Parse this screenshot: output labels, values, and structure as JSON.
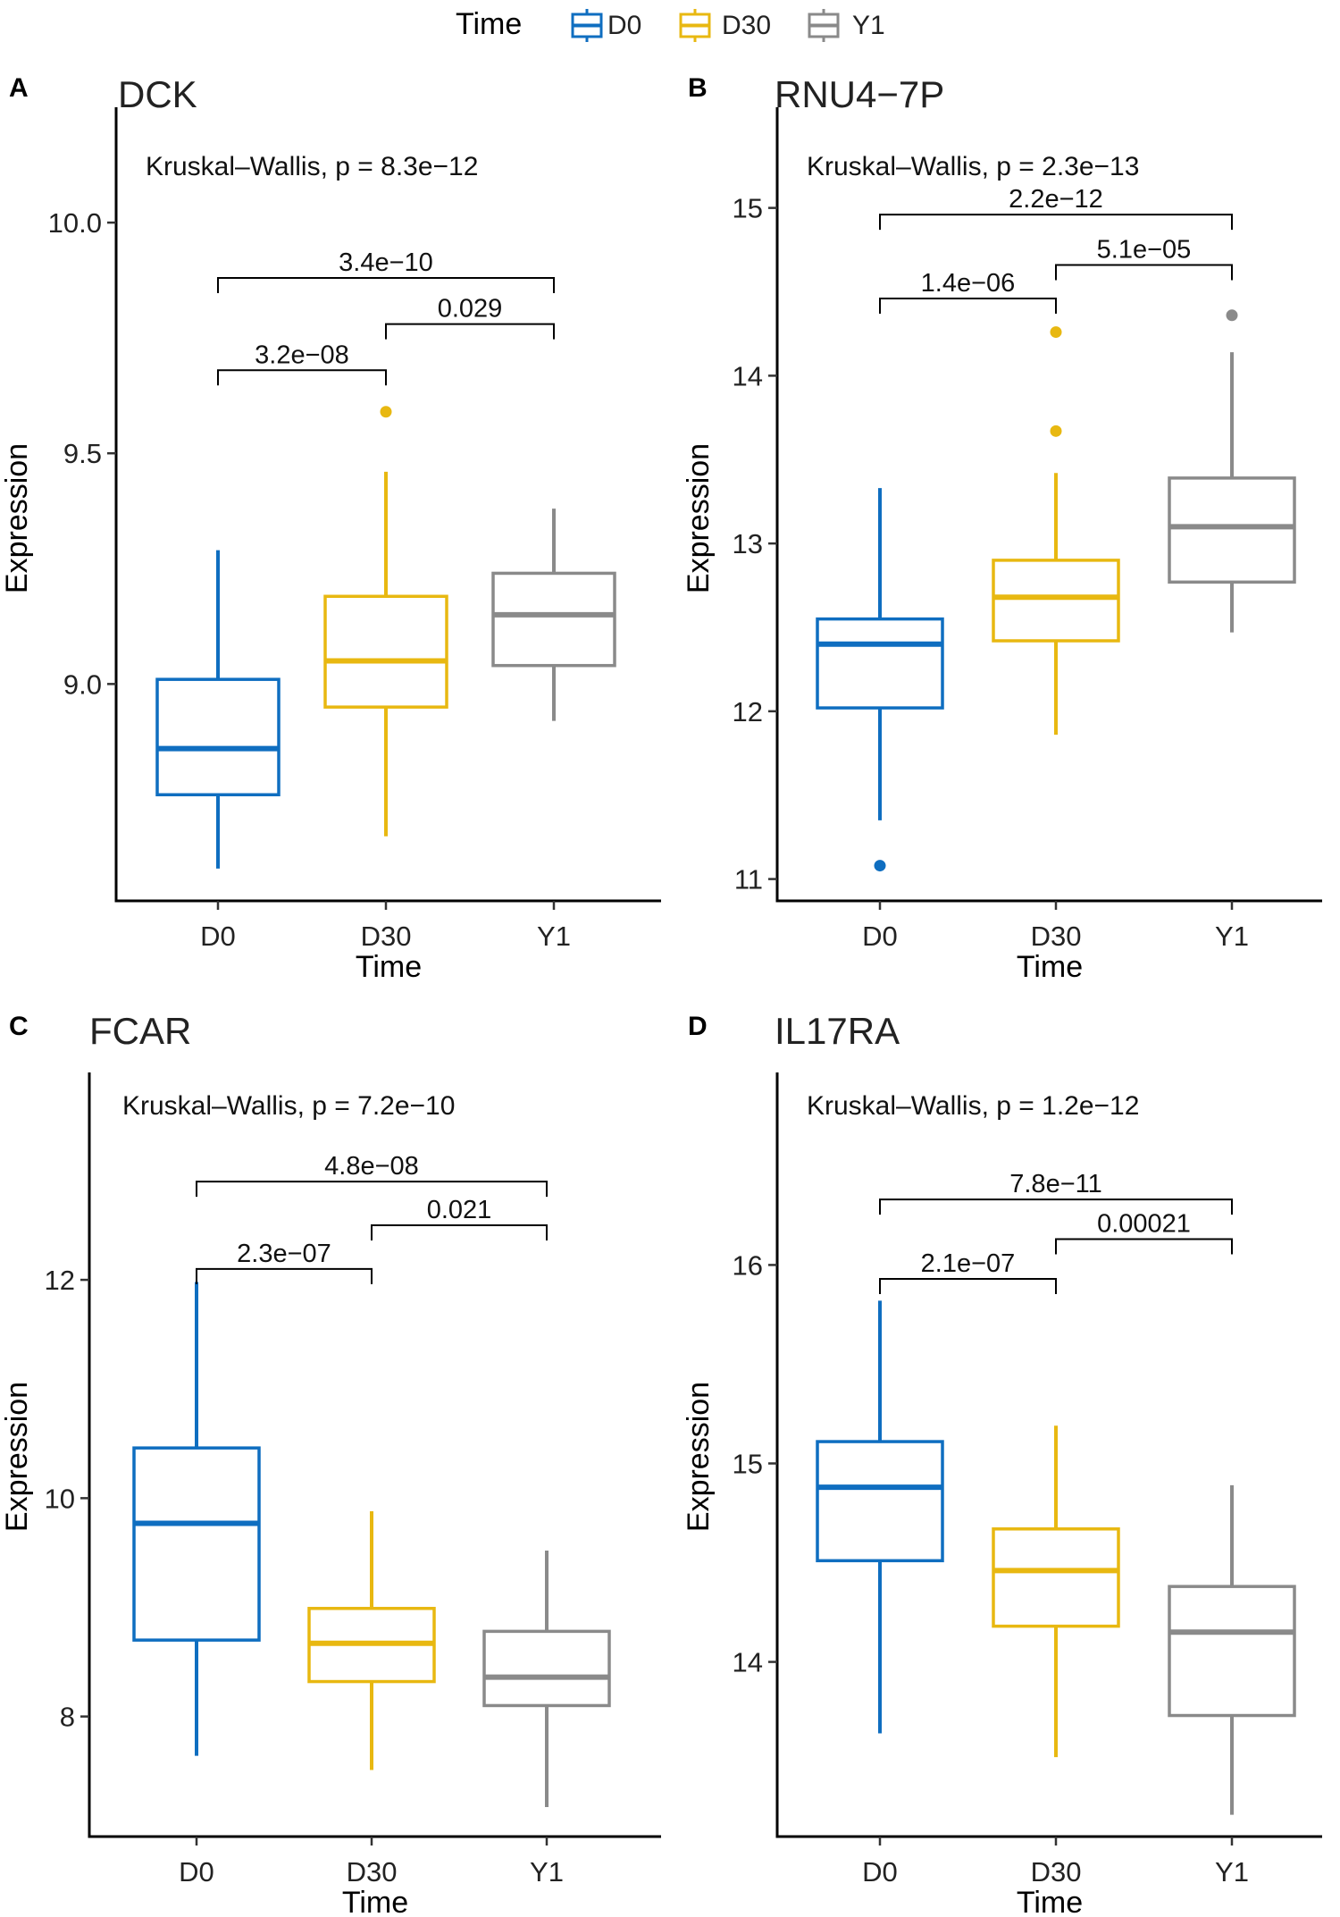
{
  "legend": {
    "title": "Time",
    "items": [
      {
        "label": "D0",
        "color": "#0F6EC0"
      },
      {
        "label": "D30",
        "color": "#E8B811"
      },
      {
        "label": "Y1",
        "color": "#8A8A8A"
      }
    ]
  },
  "chart_data": [
    {
      "type": "box",
      "letter": "A",
      "title": "DCK",
      "test_label": "Kruskal–Wallis, p = 8.3e−12",
      "xlabel": "Time",
      "ylabel": "Expression",
      "ylim": [
        8.53,
        10.25
      ],
      "yticks": [
        9.0,
        9.5,
        10.0
      ],
      "ytick_labels": [
        "9.0",
        "9.5",
        "10.0"
      ],
      "categories": [
        "D0",
        "D30",
        "Y1"
      ],
      "boxes": [
        {
          "group": "D0",
          "whisker_low": 8.6,
          "q1": 8.76,
          "median": 8.86,
          "q3": 9.01,
          "whisker_high": 9.29,
          "outliers": []
        },
        {
          "group": "D30",
          "whisker_low": 8.67,
          "q1": 8.95,
          "median": 9.05,
          "q3": 9.19,
          "whisker_high": 9.46,
          "outliers": [
            9.59
          ]
        },
        {
          "group": "Y1",
          "whisker_low": 8.92,
          "q1": 9.04,
          "median": 9.15,
          "q3": 9.24,
          "whisker_high": 9.38,
          "outliers": []
        }
      ],
      "comparisons": [
        {
          "from": "D0",
          "to": "Y1",
          "label": "3.4e−10",
          "y": 9.88
        },
        {
          "from": "D30",
          "to": "Y1",
          "label": "0.029",
          "y": 9.78
        },
        {
          "from": "D0",
          "to": "D30",
          "label": "3.2e−08",
          "y": 9.68
        }
      ]
    },
    {
      "type": "box",
      "letter": "B",
      "title": "RNU4−7P",
      "test_label": "Kruskal–Wallis, p = 2.3e−13",
      "xlabel": "Time",
      "ylabel": "Expression",
      "ylim": [
        10.87,
        15.6
      ],
      "yticks": [
        11,
        12,
        13,
        14,
        15
      ],
      "ytick_labels": [
        "11",
        "12",
        "13",
        "14",
        "15"
      ],
      "categories": [
        "D0",
        "D30",
        "Y1"
      ],
      "boxes": [
        {
          "group": "D0",
          "whisker_low": 11.35,
          "q1": 12.02,
          "median": 12.4,
          "q3": 12.55,
          "whisker_high": 13.33,
          "outliers": [
            11.08
          ]
        },
        {
          "group": "D30",
          "whisker_low": 11.86,
          "q1": 12.42,
          "median": 12.68,
          "q3": 12.9,
          "whisker_high": 13.42,
          "outliers": [
            13.67,
            14.26
          ]
        },
        {
          "group": "Y1",
          "whisker_low": 12.47,
          "q1": 12.77,
          "median": 13.1,
          "q3": 13.39,
          "whisker_high": 14.14,
          "outliers": [
            14.36
          ]
        }
      ],
      "comparisons": [
        {
          "from": "D0",
          "to": "Y1",
          "label": "2.2e−12",
          "y": 14.96
        },
        {
          "from": "D30",
          "to": "Y1",
          "label": "5.1e−05",
          "y": 14.66
        },
        {
          "from": "D0",
          "to": "D30",
          "label": "1.4e−06",
          "y": 14.46
        }
      ]
    },
    {
      "type": "box",
      "letter": "C",
      "title": "FCAR",
      "test_label": "Kruskal–Wallis, p = 7.2e−10",
      "xlabel": "Time",
      "ylabel": "Expression",
      "ylim": [
        6.9,
        13.9
      ],
      "yticks": [
        8,
        10,
        12
      ],
      "ytick_labels": [
        "8",
        "10",
        "12"
      ],
      "categories": [
        "D0",
        "D30",
        "Y1"
      ],
      "boxes": [
        {
          "group": "D0",
          "whisker_low": 7.64,
          "q1": 8.7,
          "median": 9.77,
          "q3": 10.46,
          "whisker_high": 11.98,
          "outliers": []
        },
        {
          "group": "D30",
          "whisker_low": 7.51,
          "q1": 8.32,
          "median": 8.67,
          "q3": 8.99,
          "whisker_high": 9.88,
          "outliers": []
        },
        {
          "group": "Y1",
          "whisker_low": 7.17,
          "q1": 8.1,
          "median": 8.36,
          "q3": 8.78,
          "whisker_high": 9.52,
          "outliers": []
        }
      ],
      "comparisons": [
        {
          "from": "D0",
          "to": "Y1",
          "label": "4.8e−08",
          "y": 12.9
        },
        {
          "from": "D30",
          "to": "Y1",
          "label": "0.021",
          "y": 12.5
        },
        {
          "from": "D0",
          "to": "D30",
          "label": "2.3e−07",
          "y": 12.1
        }
      ]
    },
    {
      "type": "box",
      "letter": "D",
      "title": "IL17RA",
      "test_label": "Kruskal–Wallis, p = 1.2e−12",
      "xlabel": "Time",
      "ylabel": "Expression",
      "ylim": [
        13.12,
        16.97
      ],
      "yticks": [
        14,
        15,
        16
      ],
      "ytick_labels": [
        "14",
        "15",
        "16"
      ],
      "categories": [
        "D0",
        "D30",
        "Y1"
      ],
      "boxes": [
        {
          "group": "D0",
          "whisker_low": 13.64,
          "q1": 14.51,
          "median": 14.88,
          "q3": 15.11,
          "whisker_high": 15.82,
          "outliers": []
        },
        {
          "group": "D30",
          "whisker_low": 13.52,
          "q1": 14.18,
          "median": 14.46,
          "q3": 14.67,
          "whisker_high": 15.19,
          "outliers": []
        },
        {
          "group": "Y1",
          "whisker_low": 13.23,
          "q1": 13.73,
          "median": 14.15,
          "q3": 14.38,
          "whisker_high": 14.89,
          "outliers": []
        }
      ],
      "comparisons": [
        {
          "from": "D0",
          "to": "Y1",
          "label": "7.8e−11",
          "y": 16.33
        },
        {
          "from": "D30",
          "to": "Y1",
          "label": "0.00021",
          "y": 16.13
        },
        {
          "from": "D0",
          "to": "D30",
          "label": "2.1e−07",
          "y": 15.93
        }
      ]
    }
  ]
}
